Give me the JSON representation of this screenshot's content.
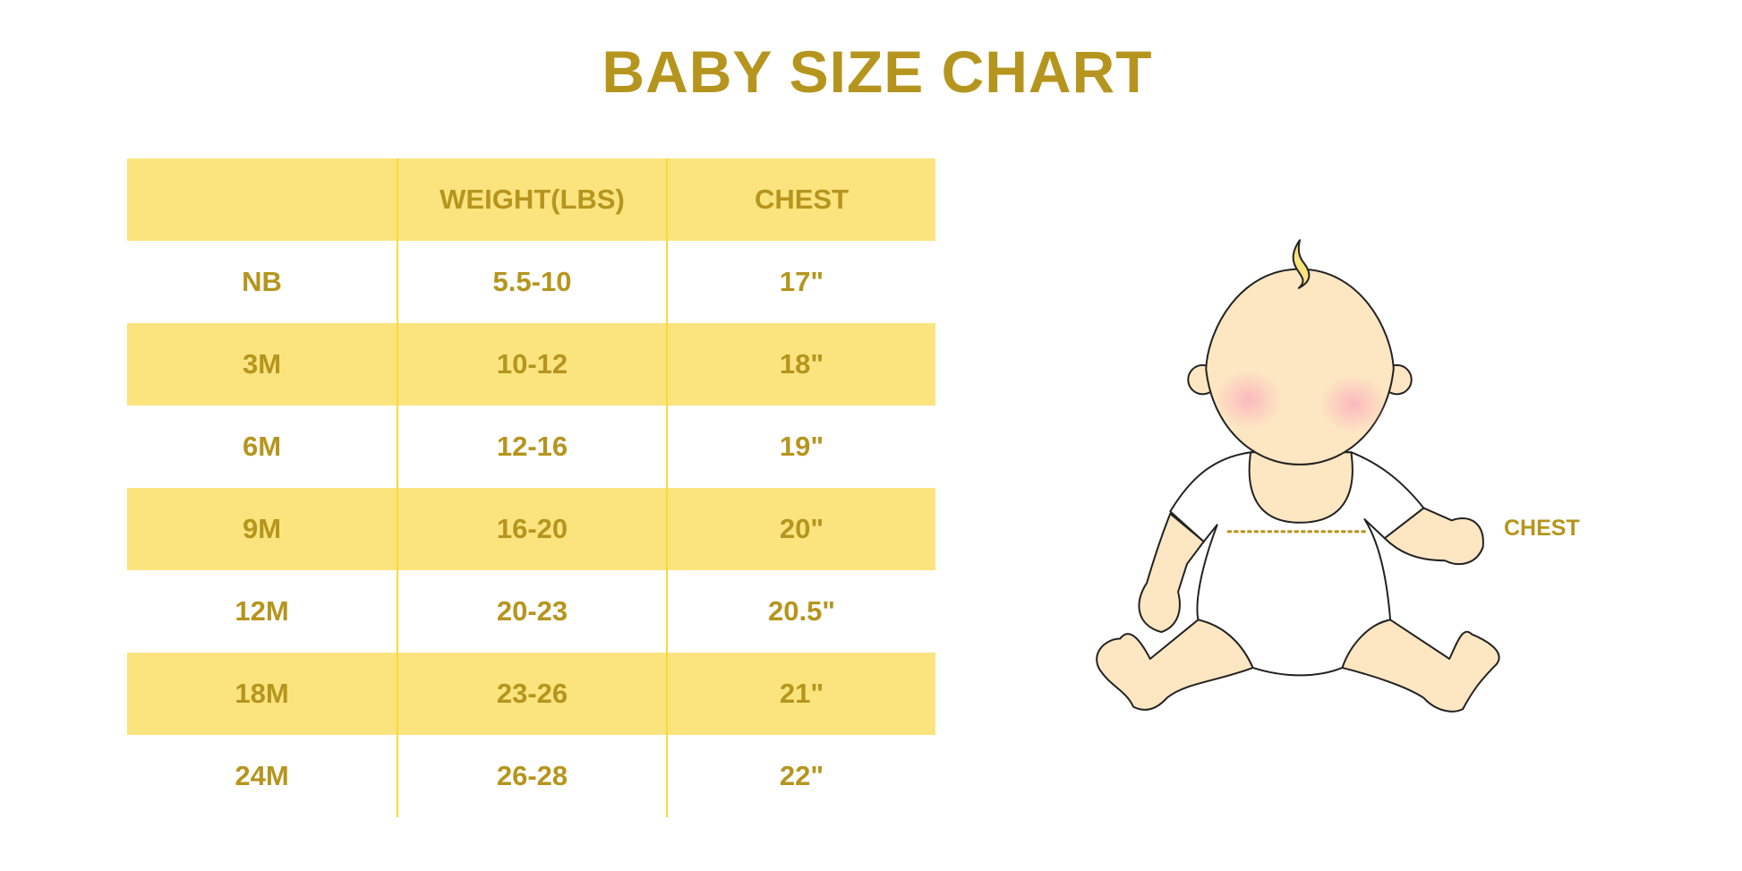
{
  "title": "BABY SIZE CHART",
  "table": {
    "headers": [
      "",
      "WEIGHT(LBS)",
      "CHEST"
    ],
    "rows": [
      [
        "NB",
        "5.5-10",
        "17\""
      ],
      [
        "3M",
        "10-12",
        "18\""
      ],
      [
        "6M",
        "12-16",
        "19\""
      ],
      [
        "9M",
        "16-20",
        "20\""
      ],
      [
        "12M",
        "20-23",
        "20.5\""
      ],
      [
        "18M",
        "23-26",
        "21\""
      ],
      [
        "24M",
        "26-28",
        "22\""
      ]
    ]
  },
  "illustration": {
    "chest_label": "CHEST"
  },
  "colors": {
    "text": "#b5951e",
    "row_highlight": "#fbe47e",
    "divider": "#fbd837",
    "skin": "#fde6c2",
    "cheek": "#fbb8be"
  }
}
